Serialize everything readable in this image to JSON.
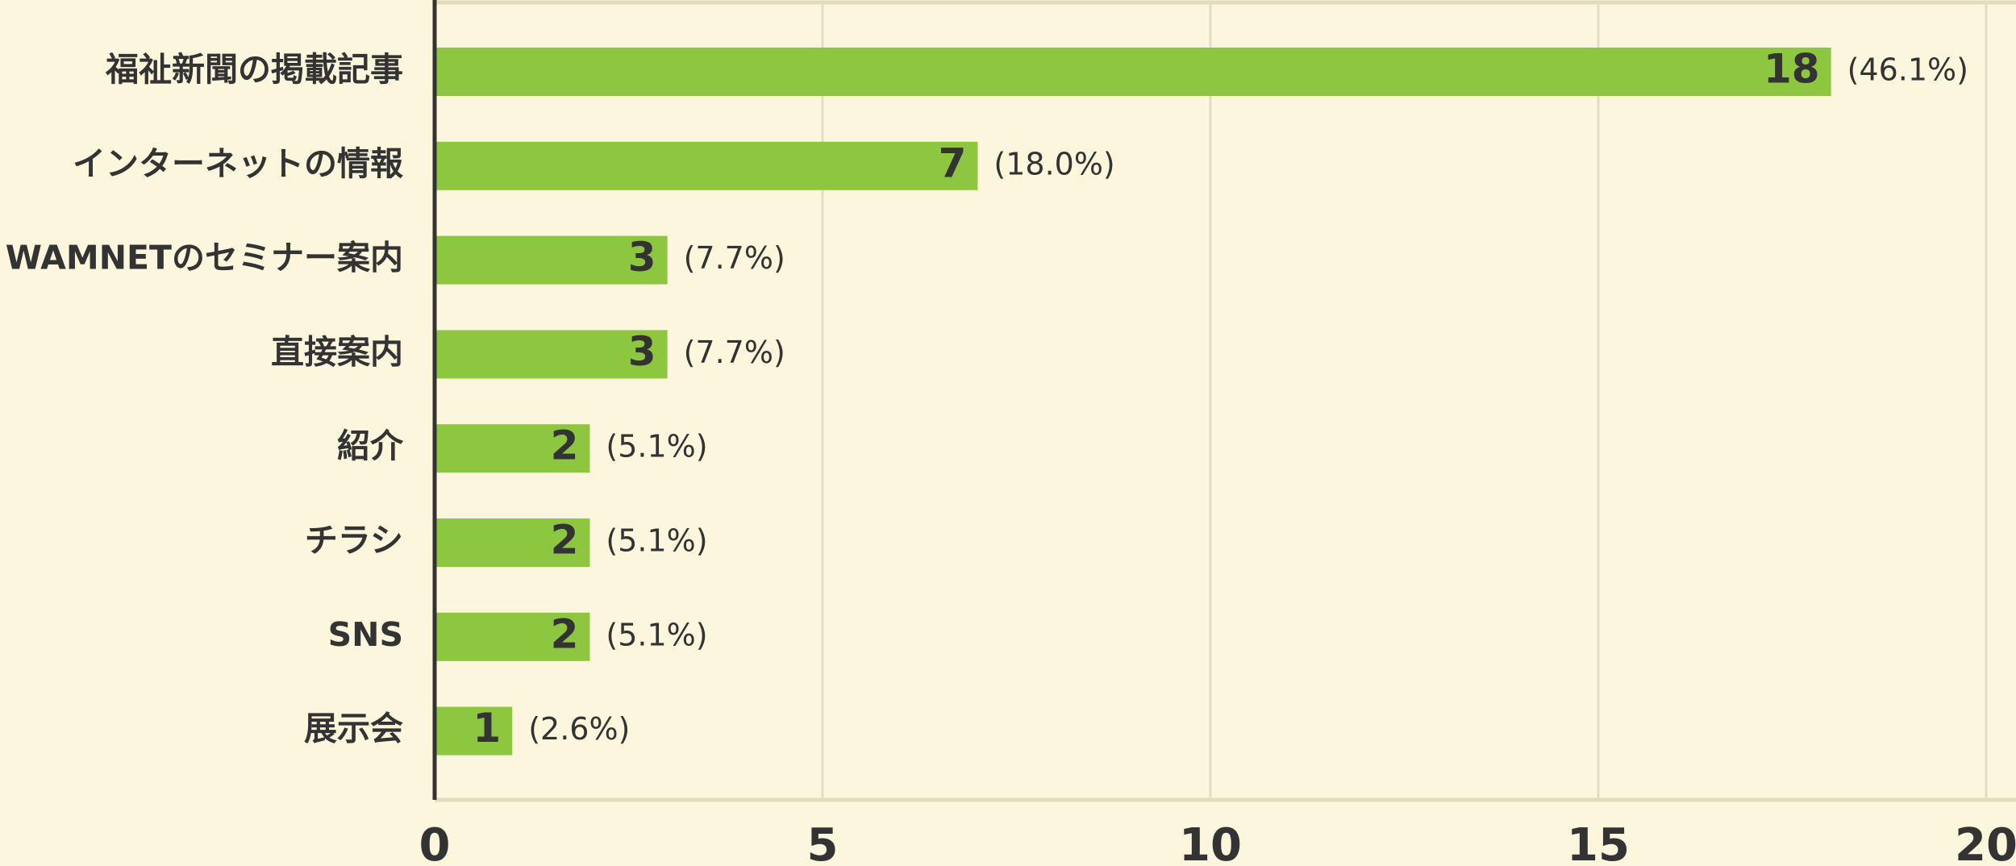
{
  "chart_data": {
    "type": "bar",
    "orientation": "horizontal",
    "categories": [
      "福祉新聞の掲載記事",
      "インターネットの情報",
      "WAMNETのセミナー案内",
      "直接案内",
      "紹介",
      "チラシ",
      "SNS",
      "展示会"
    ],
    "values": [
      18,
      7,
      3,
      3,
      2,
      2,
      2,
      1
    ],
    "percent_labels": [
      "(46.1%)",
      "(18.0%)",
      "(7.7%)",
      "(7.7%)",
      "(5.1%)",
      "(5.1%)",
      "(5.1%)",
      "(2.6%)"
    ],
    "color": "#8dc63f",
    "xlim": [
      0,
      20
    ],
    "xticks": [
      0,
      5,
      10,
      15,
      20
    ],
    "grid": true
  }
}
